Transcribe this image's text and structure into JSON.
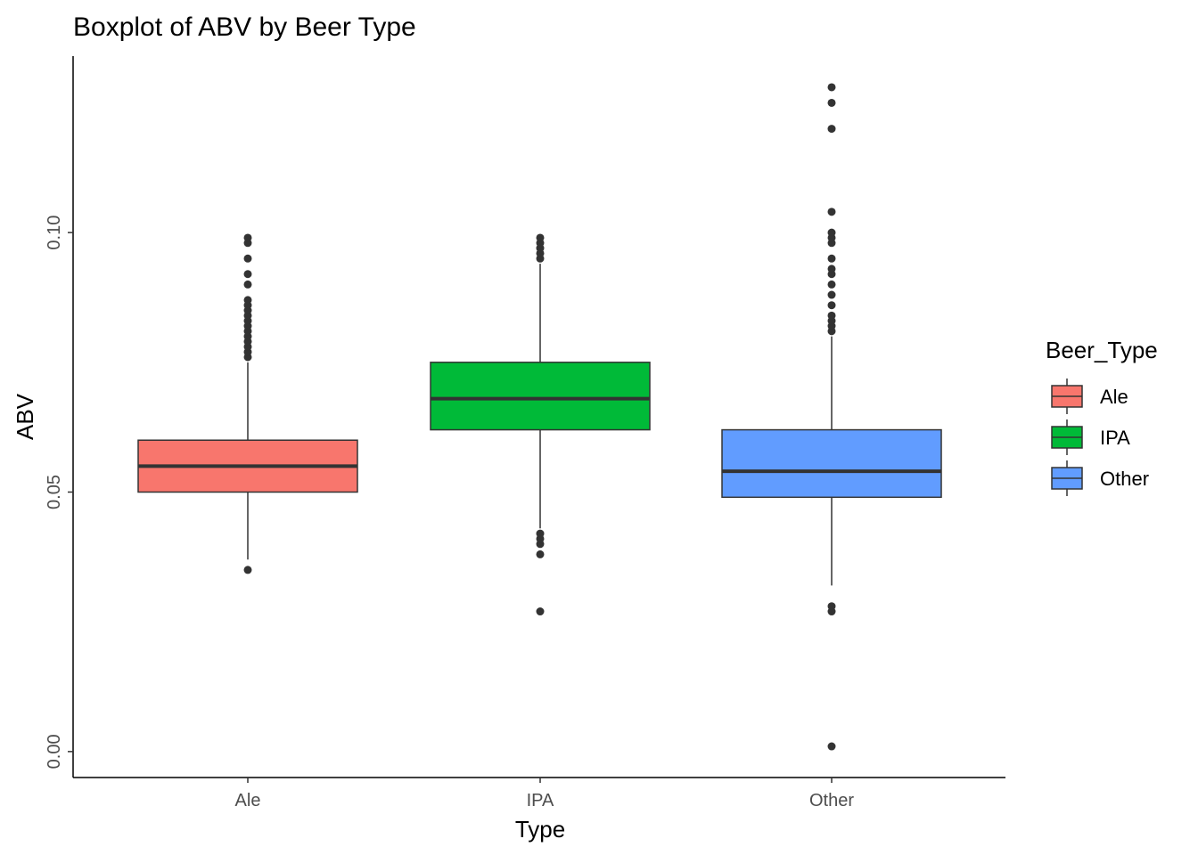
{
  "chart_data": {
    "type": "boxplot",
    "title": "Boxplot of ABV by Beer Type",
    "xlabel": "Type",
    "ylabel": "ABV",
    "ylim": [
      -0.005,
      0.134
    ],
    "y_ticks": [
      {
        "value": 0.0,
        "label": "0.00"
      },
      {
        "value": 0.05,
        "label": "0.05"
      },
      {
        "value": 0.1,
        "label": "0.10"
      }
    ],
    "categories": [
      "Ale",
      "IPA",
      "Other"
    ],
    "grid": false,
    "legend": {
      "title": "Beer_Type",
      "placement": "right"
    },
    "series": [
      {
        "name": "Ale",
        "color": "#F8766D",
        "whisker_low": 0.037,
        "q1": 0.05,
        "median": 0.055,
        "q3": 0.06,
        "whisker_high": 0.075,
        "outliers": [
          0.035,
          0.076,
          0.077,
          0.078,
          0.079,
          0.08,
          0.081,
          0.082,
          0.083,
          0.084,
          0.085,
          0.086,
          0.087,
          0.09,
          0.092,
          0.095,
          0.098,
          0.099
        ]
      },
      {
        "name": "IPA",
        "color": "#00BA38",
        "whisker_low": 0.043,
        "q1": 0.062,
        "median": 0.068,
        "q3": 0.075,
        "whisker_high": 0.094,
        "outliers": [
          0.027,
          0.038,
          0.04,
          0.041,
          0.042,
          0.095,
          0.096,
          0.097,
          0.098,
          0.099
        ]
      },
      {
        "name": "Other",
        "color": "#619CFF",
        "whisker_low": 0.032,
        "q1": 0.049,
        "median": 0.054,
        "q3": 0.062,
        "whisker_high": 0.08,
        "outliers": [
          0.001,
          0.027,
          0.028,
          0.081,
          0.082,
          0.083,
          0.084,
          0.086,
          0.088,
          0.09,
          0.092,
          0.093,
          0.095,
          0.098,
          0.099,
          0.1,
          0.104,
          0.12,
          0.125,
          0.128
        ]
      }
    ]
  }
}
